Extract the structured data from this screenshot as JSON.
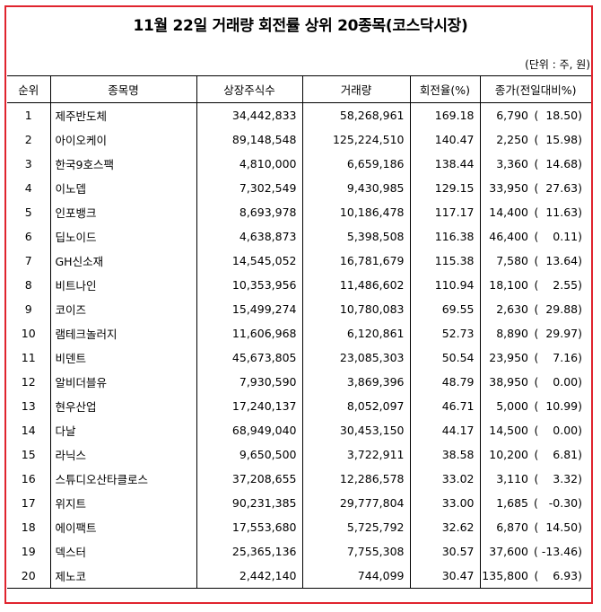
{
  "title": "11월 22일 거래량 회전률 상위 20종목(코스닥시장)",
  "unit_note": "(단위 : 주, 원)",
  "colors": {
    "frame": "#e0242e"
  },
  "columns": [
    "순위",
    "종목명",
    "상장주식수",
    "거래량",
    "회전율(%)",
    "종가(전일대비%)"
  ],
  "rows": [
    {
      "rank": "1",
      "name": "제주반도체",
      "listed": "34,442,833",
      "volume": "58,268,961",
      "turnover": "169.18",
      "close": "6,790",
      "change": "(  18.50)"
    },
    {
      "rank": "2",
      "name": "아이오케이",
      "listed": "89,148,548",
      "volume": "125,224,510",
      "turnover": "140.47",
      "close": "2,250",
      "change": "(  15.98)"
    },
    {
      "rank": "3",
      "name": "한국9호스팩",
      "listed": "4,810,000",
      "volume": "6,659,186",
      "turnover": "138.44",
      "close": "3,360",
      "change": "(  14.68)"
    },
    {
      "rank": "4",
      "name": "이노뎁",
      "listed": "7,302,549",
      "volume": "9,430,985",
      "turnover": "129.15",
      "close": "33,950",
      "change": "(  27.63)"
    },
    {
      "rank": "5",
      "name": "인포뱅크",
      "listed": "8,693,978",
      "volume": "10,186,478",
      "turnover": "117.17",
      "close": "14,400",
      "change": "(  11.63)"
    },
    {
      "rank": "6",
      "name": "딥노이드",
      "listed": "4,638,873",
      "volume": "5,398,508",
      "turnover": "116.38",
      "close": "46,400",
      "change": "(    0.11)"
    },
    {
      "rank": "7",
      "name": "GH신소재",
      "listed": "14,545,052",
      "volume": "16,781,679",
      "turnover": "115.38",
      "close": "7,580",
      "change": "(  13.64)"
    },
    {
      "rank": "8",
      "name": "비트나인",
      "listed": "10,353,956",
      "volume": "11,486,602",
      "turnover": "110.94",
      "close": "18,100",
      "change": "(    2.55)"
    },
    {
      "rank": "9",
      "name": "코이즈",
      "listed": "15,499,274",
      "volume": "10,780,083",
      "turnover": "69.55",
      "close": "2,630",
      "change": "(  29.88)"
    },
    {
      "rank": "10",
      "name": "램테크놀러지",
      "listed": "11,606,968",
      "volume": "6,120,861",
      "turnover": "52.73",
      "close": "8,890",
      "change": "(  29.97)"
    },
    {
      "rank": "11",
      "name": "비덴트",
      "listed": "45,673,805",
      "volume": "23,085,303",
      "turnover": "50.54",
      "close": "23,950",
      "change": "(    7.16)"
    },
    {
      "rank": "12",
      "name": "알비더블유",
      "listed": "7,930,590",
      "volume": "3,869,396",
      "turnover": "48.79",
      "close": "38,950",
      "change": "(    0.00)"
    },
    {
      "rank": "13",
      "name": "현우산업",
      "listed": "17,240,137",
      "volume": "8,052,097",
      "turnover": "46.71",
      "close": "5,000",
      "change": "(  10.99)"
    },
    {
      "rank": "14",
      "name": "다날",
      "listed": "68,949,040",
      "volume": "30,453,150",
      "turnover": "44.17",
      "close": "14,500",
      "change": "(    0.00)"
    },
    {
      "rank": "15",
      "name": "라닉스",
      "listed": "9,650,500",
      "volume": "3,722,911",
      "turnover": "38.58",
      "close": "10,200",
      "change": "(    6.81)"
    },
    {
      "rank": "16",
      "name": "스튜디오산타클로스",
      "listed": "37,208,655",
      "volume": "12,286,578",
      "turnover": "33.02",
      "close": "3,110",
      "change": "(    3.32)"
    },
    {
      "rank": "17",
      "name": "위지트",
      "listed": "90,231,385",
      "volume": "29,777,804",
      "turnover": "33.00",
      "close": "1,685",
      "change": "(   -0.30)"
    },
    {
      "rank": "18",
      "name": "에이팩트",
      "listed": "17,553,680",
      "volume": "5,725,792",
      "turnover": "32.62",
      "close": "6,870",
      "change": "(  14.50)"
    },
    {
      "rank": "19",
      "name": "덱스터",
      "listed": "25,365,136",
      "volume": "7,755,308",
      "turnover": "30.57",
      "close": "37,600",
      "change": "( -13.46)"
    },
    {
      "rank": "20",
      "name": "제노코",
      "listed": "2,442,140",
      "volume": "744,099",
      "turnover": "30.47",
      "close": "135,800",
      "change": "(    6.93)"
    }
  ]
}
